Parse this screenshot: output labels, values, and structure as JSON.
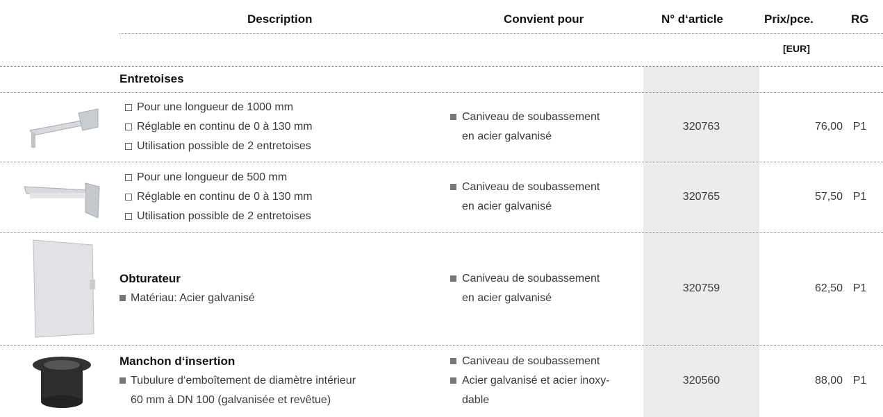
{
  "header": {
    "columns": [
      "Description",
      "Convient pour",
      "N° d‘article",
      "Prix/pce.",
      "RG"
    ],
    "unit": "[EUR]"
  },
  "section": "Entretoises",
  "rows": [
    {
      "description": [
        "Pour une longueur de 1000 mm",
        "Réglable en continu de 0 à 130 mm",
        "Utilisation possible de 2 entretoises"
      ],
      "fits": [
        "Caniveau de soubassement\nen acier galvanisé"
      ],
      "article": "320763",
      "price": "76,00",
      "rg": "P1"
    },
    {
      "description": [
        "Pour une longueur de 500 mm",
        "Réglable en continu de 0 à 130 mm",
        "Utilisation possible de 2 entretoises"
      ],
      "fits": [
        "Caniveau de soubassement\nen acier galvanisé"
      ],
      "article": "320765",
      "price": "57,50",
      "rg": "P1"
    },
    {
      "title": "Obturateur",
      "description": [
        "Matériau: Acier galvanisé"
      ],
      "fits": [
        "Caniveau de soubassement\nen acier galvanisé"
      ],
      "article": "320759",
      "price": "62,50",
      "rg": "P1"
    },
    {
      "title": "Manchon d‘insertion",
      "description": [
        "Tubulure d‘emboîtement de diamètre intérieur\n60 mm à DN 100 (galvanisée et revêtue)"
      ],
      "fits": [
        "Caniveau de soubassement",
        "Acier galvanisé et acier inoxy-\ndable"
      ],
      "article": "320560",
      "price": "88,00",
      "rg": "P1"
    }
  ]
}
